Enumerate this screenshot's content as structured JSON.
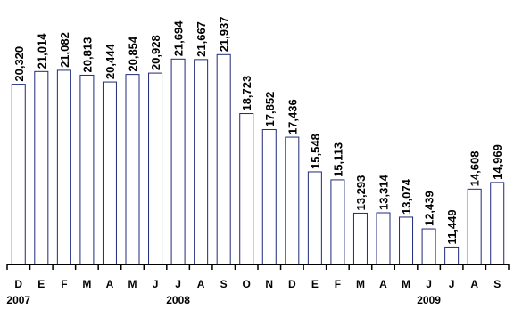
{
  "chart_data": {
    "type": "bar",
    "categories": [
      "D",
      "E",
      "F",
      "M",
      "A",
      "M",
      "J",
      "J",
      "A",
      "S",
      "O",
      "N",
      "D",
      "E",
      "F",
      "M",
      "A",
      "M",
      "J",
      "J",
      "A",
      "S"
    ],
    "values": [
      20320,
      21014,
      21082,
      20813,
      20444,
      20854,
      20928,
      21694,
      21667,
      21937,
      18723,
      17852,
      17436,
      15548,
      15113,
      13293,
      13314,
      13074,
      12439,
      11449,
      14608,
      14969
    ],
    "value_labels": [
      "20,320",
      "21,014",
      "21,082",
      "20,813",
      "20,444",
      "20,854",
      "20,928",
      "21,694",
      "21,667",
      "21,937",
      "18,723",
      "17,852",
      "17,436",
      "15,548",
      "15,113",
      "13,293",
      "13,314",
      "13,074",
      "12,439",
      "11,449",
      "14,608",
      "14,969"
    ],
    "year_labels": [
      {
        "text": "2007",
        "index": 0
      },
      {
        "text": "2008",
        "index": 7
      },
      {
        "text": "2009",
        "index": 18
      }
    ],
    "ylim": [
      10500,
      22000
    ],
    "bar_fill": "#ffffff",
    "bar_stroke": "#1e2a7a",
    "axis_color": "#000000",
    "grid": false,
    "title": "",
    "xlabel": "",
    "ylabel": ""
  }
}
